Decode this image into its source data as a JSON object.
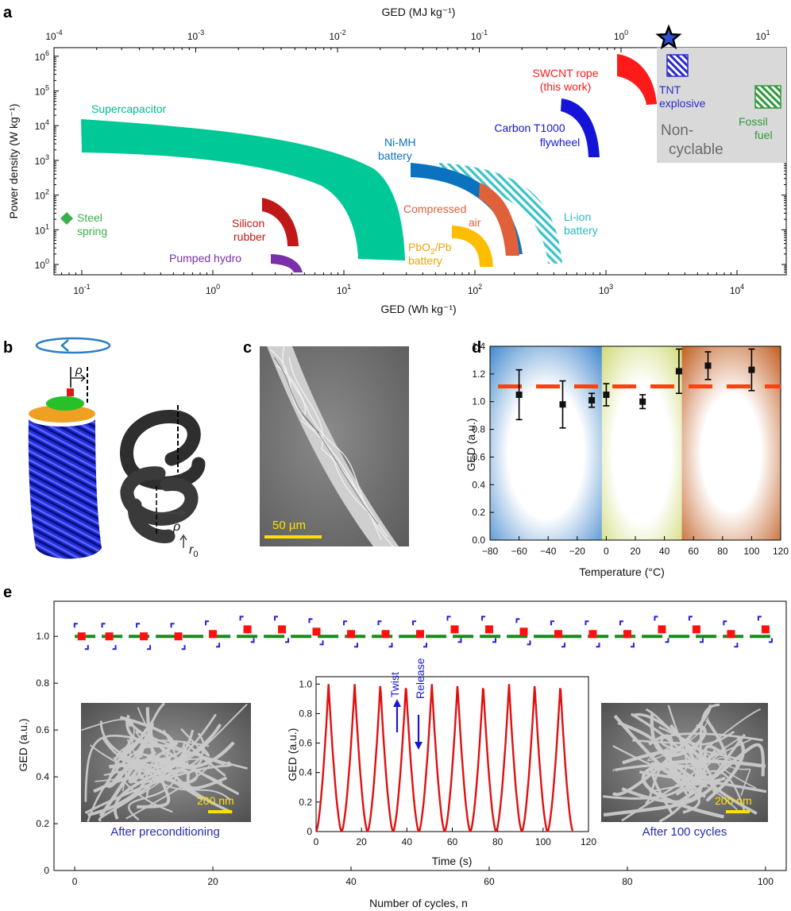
{
  "panel_letters": {
    "a": "a",
    "b": "b",
    "c": "c",
    "d": "d",
    "e": "e"
  },
  "colors": {
    "supercapacitor": "#00c896",
    "swcnt": "#ff1a1a",
    "carbon": "#1414d8",
    "nimh": "#0a72be",
    "liion": "#36c2c8",
    "compressed": "#e0603a",
    "pbo2": "#ffbd00",
    "silicon": "#c01818",
    "pumped": "#7a30a8",
    "steel": "#3cae4e",
    "tnt": "#2a2ad0",
    "fossil": "#2e9a3a",
    "noncyc": "#d9d9d9",
    "red_marker": "#ff1010",
    "green_line": "#1a8a1a",
    "bracket": "#2020dd",
    "dash": "#ff4010"
  },
  "panel_a": {
    "top_axis_title": "GED (MJ kg⁻¹)",
    "top_ticks": [
      {
        "v": 0.0001,
        "base": "10",
        "exp": "-4"
      },
      {
        "v": 0.001,
        "base": "10",
        "exp": "-3"
      },
      {
        "v": 0.01,
        "base": "10",
        "exp": "-2"
      },
      {
        "v": 0.1,
        "base": "10",
        "exp": "-1"
      },
      {
        "v": 1,
        "base": "10",
        "exp": "0"
      },
      {
        "v": 10,
        "base": "10",
        "exp": "1"
      }
    ],
    "bottom_axis_title": "GED (Wh kg⁻¹)",
    "bottom_ticks": [
      {
        "v": 0.1,
        "base": "10",
        "exp": "-1"
      },
      {
        "v": 1,
        "base": "10",
        "exp": "0"
      },
      {
        "v": 10,
        "base": "10",
        "exp": "1"
      },
      {
        "v": 100,
        "base": "10",
        "exp": "2"
      },
      {
        "v": 1000,
        "base": "10",
        "exp": "3"
      },
      {
        "v": 10000,
        "base": "10",
        "exp": "4"
      }
    ],
    "y_axis_title": "Power density (W kg⁻¹)",
    "y_ticks": [
      {
        "v": 1,
        "base": "10",
        "exp": "0"
      },
      {
        "v": 10,
        "base": "10",
        "exp": "1"
      },
      {
        "v": 100,
        "base": "10",
        "exp": "2"
      },
      {
        "v": 1000,
        "base": "10",
        "exp": "3"
      },
      {
        "v": 10000,
        "base": "10",
        "exp": "4"
      },
      {
        "v": 100000,
        "base": "10",
        "exp": "5"
      },
      {
        "v": 1000000,
        "base": "10",
        "exp": "6"
      }
    ],
    "labels": {
      "supercapacitor": "Supercapacitor",
      "swcnt_1": "SWCNT rope",
      "swcnt_2": "(this work)",
      "tnt_1": "TNT",
      "tnt_2": "explosive",
      "carbon_1": "Carbon T1000",
      "carbon_2": "flywheel",
      "noncyc_1": "Non-",
      "noncyc_2": "cyclable",
      "fossil_1": "Fossil",
      "fossil_2": "fuel",
      "nimh_1": "Ni-MH",
      "nimh_2": "battery",
      "compressed_1": "Compressed",
      "compressed_2": "air",
      "liion_1": "Li-ion",
      "liion_2": "battery",
      "steel_1": "Steel",
      "steel_2": "spring",
      "silicon_1": "Silicon",
      "silicon_2": "rubber",
      "pbo2_1": "PbO",
      "pbo2_sub": "2",
      "pbo2_rest": "/Pb",
      "pbo2_2": "battery",
      "pumped": "Pumped hydro"
    }
  },
  "panel_b": {
    "rho": "ρ",
    "rho2": "ρ",
    "r0": "r",
    "r0_sub": "0"
  },
  "panel_c": {
    "scale_bar": "50 µm"
  },
  "panel_d": {
    "x_axis_title": "Temperature (°C)",
    "y_axis_title": "GED (a.u.)"
  },
  "panel_e": {
    "x_axis_title": "Number of cycles, n",
    "y_axis_title": "GED (a.u.)",
    "left_image_scale": "200 nm",
    "left_image_caption": "After preconditioning",
    "right_image_scale": "200 nm",
    "right_image_caption": "After 100 cycles",
    "inset": {
      "x_axis_title": "Time (s)",
      "y_axis_title": "GED (a.u.)",
      "twist_label": "Twist",
      "release_label": "Release"
    }
  },
  "chart_data": [
    {
      "type": "scatter",
      "id": "panel-d",
      "xlabel": "Temperature (°C)",
      "ylabel": "GED (a.u.)",
      "xlim": [
        -80,
        120
      ],
      "ylim": [
        0,
        1.4
      ],
      "x_ticks": [
        -80,
        -60,
        -40,
        -20,
        0,
        20,
        40,
        60,
        80,
        100,
        120
      ],
      "y_ticks": [
        0,
        0.2,
        0.4,
        0.6,
        0.8,
        1.0,
        1.2,
        1.4
      ],
      "x": [
        -60,
        -30,
        -10,
        0,
        25,
        50,
        70,
        100
      ],
      "y": [
        1.05,
        0.98,
        1.01,
        1.05,
        1.0,
        1.22,
        1.26,
        1.23
      ],
      "err": [
        0.18,
        0.17,
        0.05,
        0.08,
        0.05,
        0.16,
        0.1,
        0.15
      ],
      "reference_line": 1.11
    },
    {
      "type": "scatter",
      "id": "panel-e",
      "xlabel": "Number of cycles, n",
      "ylabel": "GED (a.u.)",
      "xlim": [
        -3,
        103
      ],
      "ylim": [
        0,
        1.15
      ],
      "x_ticks": [
        0,
        20,
        40,
        60,
        80,
        100
      ],
      "y_ticks": [
        0,
        0.2,
        0.4,
        0.6,
        0.8,
        1.0
      ],
      "x": [
        1,
        5,
        10,
        15,
        20,
        25,
        30,
        35,
        40,
        45,
        50,
        55,
        60,
        65,
        70,
        75,
        80,
        85,
        90,
        95,
        100
      ],
      "y": [
        1.0,
        1.0,
        1.0,
        1.0,
        1.01,
        1.03,
        1.03,
        1.02,
        1.01,
        1.01,
        1.01,
        1.03,
        1.03,
        1.02,
        1.01,
        1.01,
        1.01,
        1.03,
        1.03,
        1.01,
        1.03
      ],
      "reference_line": 1.0
    },
    {
      "type": "line",
      "id": "panel-e-inset",
      "xlabel": "Time (s)",
      "ylabel": "GED (a.u.)",
      "xlim": [
        0,
        120
      ],
      "ylim": [
        0,
        1.05
      ],
      "x_ticks": [
        0,
        20,
        40,
        60,
        80,
        100,
        120
      ],
      "y_ticks": [
        0,
        0.2,
        0.4,
        0.6,
        0.8,
        1.0
      ],
      "peak_times": [
        5.5,
        17,
        28.3,
        39.6,
        51,
        62.3,
        73.6,
        85,
        96.3,
        107.6
      ],
      "peak_value": 1.0
    }
  ]
}
